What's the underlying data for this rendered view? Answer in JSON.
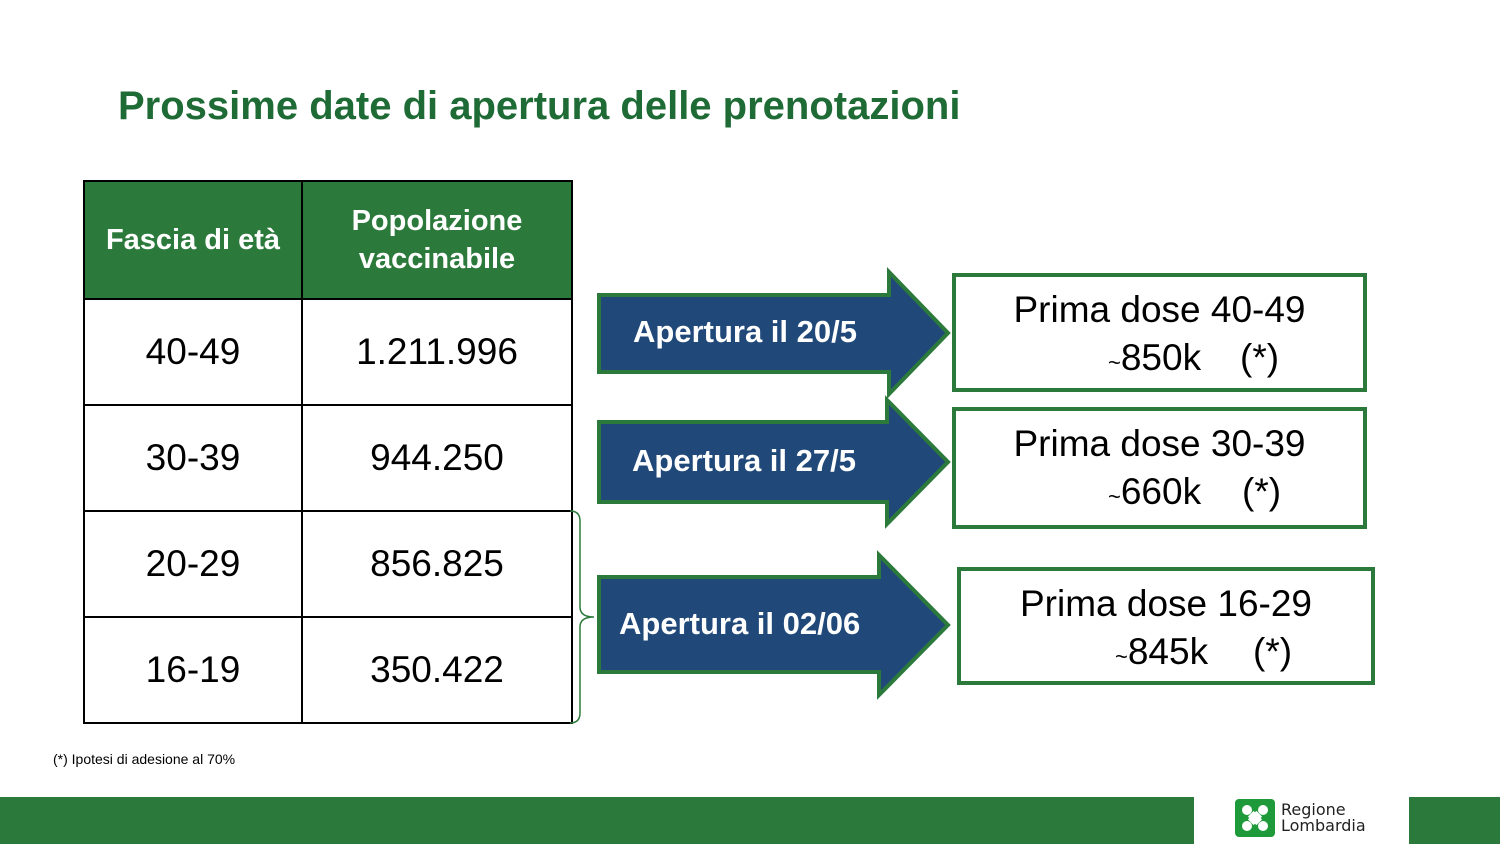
{
  "title": "Prossime date di apertura delle prenotazioni",
  "table": {
    "headers": [
      "Fascia di età",
      "Popolazione vaccinabile"
    ],
    "rows": [
      [
        "40-49",
        "1.211.996"
      ],
      [
        "30-39",
        "944.250"
      ],
      [
        "20-29",
        "856.825"
      ],
      [
        "16-19",
        "350.422"
      ]
    ]
  },
  "arrows": [
    "Apertura il 20/5",
    "Apertura il 27/5",
    "Apertura il 02/06"
  ],
  "boxes": [
    {
      "line1": "Prima dose 40-49",
      "tilde": "~",
      "value": "850k",
      "note": "(*)"
    },
    {
      "line1": "Prima dose 30-39",
      "tilde": "~",
      "value": "660k",
      "note": "(*)"
    },
    {
      "line1": "Prima dose 16-29",
      "tilde": "~",
      "value": "845k",
      "note": "(*)"
    }
  ],
  "footnote": "(*) Ipotesi di adesione al 70%",
  "logo": {
    "line1": "Regione",
    "line2": "Lombardia",
    "icon": "regione-lombardia-rose-icon"
  },
  "colors": {
    "green": "#2b7a3b",
    "title": "#1e6b35",
    "arrow": "#20497a"
  }
}
